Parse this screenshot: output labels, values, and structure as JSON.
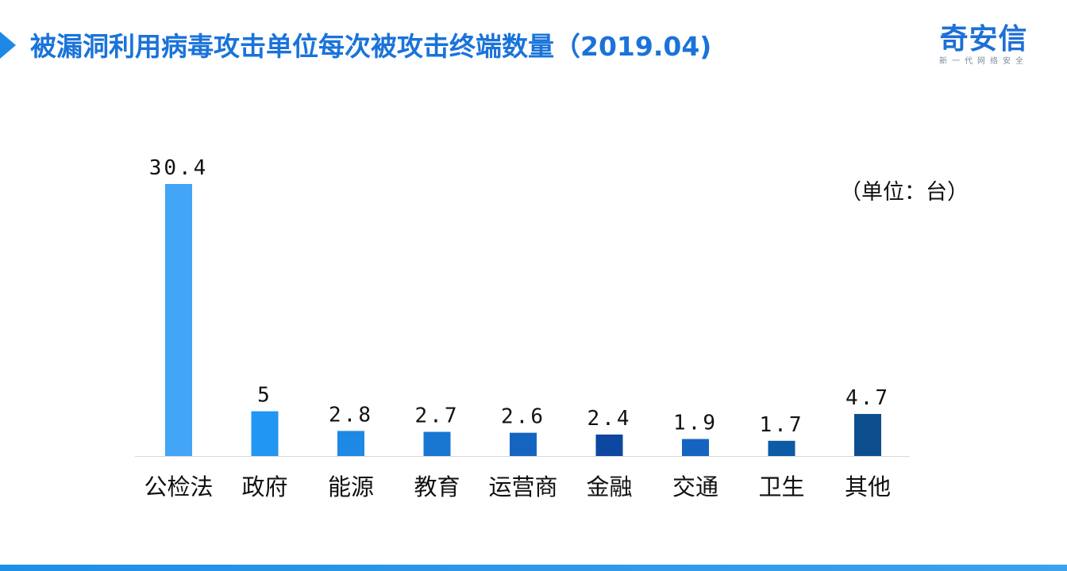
{
  "header": {
    "title": "被漏洞利用病毒攻击单位每次被攻击终端数量（2019.04)",
    "logo_main": "奇安信",
    "logo_sub": "新一代网络安全"
  },
  "chart_data": {
    "type": "bar",
    "title": "被漏洞利用病毒攻击单位每次被攻击终端数量（2019.04)",
    "unit_label": "（单位：台）",
    "categories": [
      "公检法",
      "政府",
      "能源",
      "教育",
      "运营商",
      "金融",
      "交通",
      "卫生",
      "其他"
    ],
    "values": [
      30.4,
      5,
      2.8,
      2.7,
      2.6,
      2.4,
      1.9,
      1.7,
      4.7
    ],
    "value_labels": [
      "30.4",
      "5",
      "2.8",
      "2.7",
      "2.6",
      "2.4",
      "1.9",
      "1.7",
      "4.7"
    ],
    "colors": [
      "#42a5f5",
      "#2196f3",
      "#1e88e5",
      "#1976d2",
      "#1565c0",
      "#0d47a1",
      "#1565c0",
      "#0d5aa7",
      "#0d4f8e"
    ],
    "xlabel": "",
    "ylabel": "",
    "ylim": [
      0,
      30.4
    ],
    "grid": false,
    "legend": "none"
  }
}
